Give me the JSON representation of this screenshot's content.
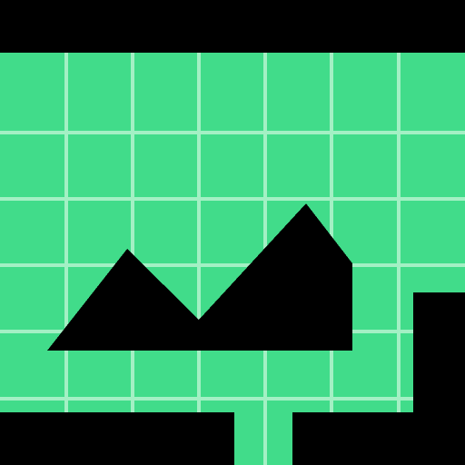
{
  "icon": {
    "name": "area-chart-icon",
    "description_free": true
  },
  "colors": {
    "background": "#000000",
    "panel": "#41dc8a",
    "grid_line": "#a3f0c4",
    "area_fill": "#000000"
  }
}
